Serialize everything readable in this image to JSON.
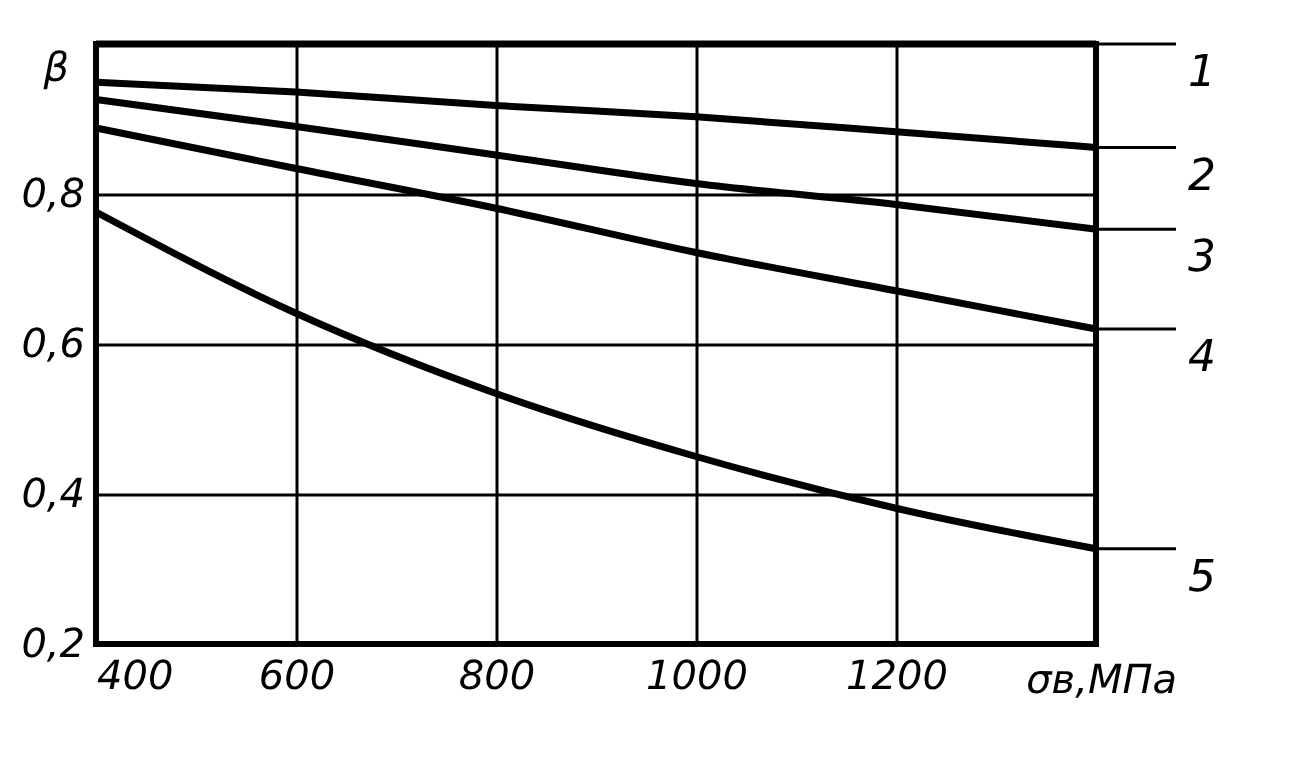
{
  "chart_data": {
    "type": "line",
    "xlabel": "σв,МПа",
    "ylabel": "β",
    "x": [
      400,
      600,
      800,
      1000,
      1200,
      1400
    ],
    "series": [
      {
        "name": "1",
        "color": "#000000",
        "values": [
          1.0,
          1.0,
          1.0,
          1.0,
          1.0,
          1.0
        ]
      },
      {
        "name": "2",
        "color": "#000000",
        "values": [
          0.949,
          0.936,
          0.918,
          0.903,
          0.883,
          0.862
        ]
      },
      {
        "name": "3",
        "color": "#000000",
        "values": [
          0.926,
          0.89,
          0.852,
          0.814,
          0.786,
          0.753
        ]
      },
      {
        "name": "4",
        "color": "#000000",
        "values": [
          0.888,
          0.834,
          0.781,
          0.722,
          0.671,
          0.62
        ]
      },
      {
        "name": "5",
        "color": "#000000",
        "values": [
          0.776,
          0.641,
          0.534,
          0.45,
          0.381,
          0.327
        ]
      }
    ],
    "xlim": [
      400,
      1400
    ],
    "ylim": [
      0.2,
      1.0
    ],
    "xticks": [
      400,
      600,
      800,
      1000,
      1200
    ],
    "yticks": [
      {
        "value": 0.2,
        "label": "0,2"
      },
      {
        "value": 0.4,
        "label": "0,4"
      },
      {
        "value": 0.6,
        "label": "0,6"
      },
      {
        "value": 0.8,
        "label": "0,8"
      }
    ],
    "grid": true,
    "legend": "right",
    "marker": "none",
    "line_style": "solid"
  }
}
